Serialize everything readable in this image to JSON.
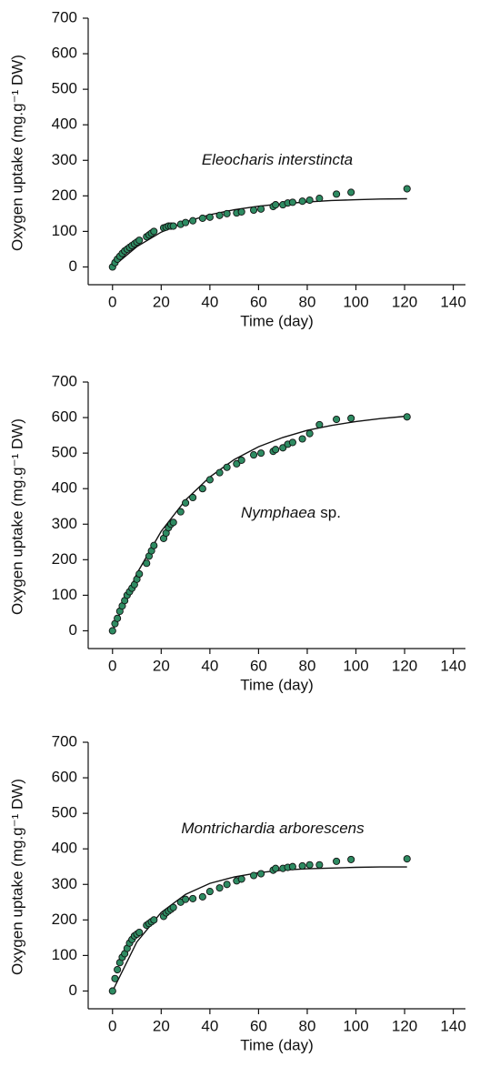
{
  "chart_data": [
    {
      "type": "scatter",
      "x_label": "Time (day)",
      "y_label": "Oxygen uptake (mg.g⁻¹ DW)",
      "annotation": [
        "Eleocharis interstincta"
      ],
      "xlim": [
        -10,
        145
      ],
      "ylim": [
        -50,
        700
      ],
      "xticks": [
        0,
        20,
        40,
        60,
        80,
        100,
        120,
        140
      ],
      "yticks": [
        0,
        100,
        200,
        300,
        400,
        500,
        600,
        700
      ],
      "points": {
        "color": "#2e8b62",
        "x": [
          0,
          1,
          2,
          3,
          4,
          5,
          6,
          7,
          8,
          9,
          10,
          11,
          14,
          15,
          16,
          17,
          21,
          22,
          23,
          24,
          25,
          28,
          30,
          33,
          37,
          40,
          44,
          47,
          51,
          53,
          58,
          61,
          66,
          67,
          70,
          72,
          74,
          78,
          81,
          85,
          92,
          98,
          121
        ],
        "values": [
          0,
          12,
          22,
          30,
          38,
          45,
          50,
          55,
          60,
          65,
          70,
          75,
          85,
          90,
          95,
          100,
          110,
          112,
          115,
          115,
          115,
          120,
          125,
          130,
          137,
          140,
          145,
          150,
          152,
          155,
          160,
          163,
          170,
          175,
          175,
          180,
          182,
          185,
          188,
          193,
          205,
          210,
          220
        ]
      },
      "fit": {
        "color": "#111111",
        "x": [
          0,
          10,
          20,
          30,
          40,
          50,
          60,
          70,
          80,
          90,
          100,
          110,
          121
        ],
        "values": [
          0,
          57,
          98,
          127,
          147,
          161,
          171,
          178,
          183,
          187,
          189,
          191,
          192
        ]
      }
    },
    {
      "type": "scatter",
      "x_label": "Time (day)",
      "y_label": "Oxygen uptake (mg.g⁻¹ DW)",
      "annotation": [
        "Nymphaea",
        "sp."
      ],
      "xlim": [
        -10,
        145
      ],
      "ylim": [
        -50,
        700
      ],
      "xticks": [
        0,
        20,
        40,
        60,
        80,
        100,
        120,
        140
      ],
      "yticks": [
        0,
        100,
        200,
        300,
        400,
        500,
        600,
        700
      ],
      "points": {
        "color": "#2e8b62",
        "x": [
          0,
          1,
          2,
          3,
          4,
          5,
          6,
          7,
          8,
          9,
          10,
          11,
          14,
          15,
          16,
          17,
          21,
          22,
          23,
          24,
          25,
          28,
          30,
          33,
          37,
          40,
          44,
          47,
          51,
          53,
          58,
          61,
          66,
          67,
          70,
          72,
          74,
          78,
          81,
          85,
          92,
          98,
          121
        ],
        "values": [
          0,
          20,
          35,
          55,
          70,
          85,
          100,
          110,
          120,
          130,
          145,
          160,
          190,
          210,
          225,
          240,
          260,
          275,
          290,
          300,
          305,
          335,
          360,
          375,
          400,
          425,
          445,
          460,
          470,
          480,
          495,
          500,
          505,
          510,
          515,
          525,
          530,
          540,
          555,
          580,
          595,
          598,
          602
        ]
      },
      "fit": {
        "color": "#111111",
        "x": [
          0,
          10,
          20,
          30,
          40,
          50,
          60,
          70,
          80,
          90,
          100,
          110,
          121
        ],
        "values": [
          0,
          161,
          280,
          368,
          433,
          482,
          518,
          544,
          564,
          578,
          589,
          597,
          604
        ]
      }
    },
    {
      "type": "scatter",
      "x_label": "Time (day)",
      "y_label": "Oxygen uptake (mg.g⁻¹ DW)",
      "annotation": [
        "Montrichardia arborescens"
      ],
      "xlim": [
        -10,
        145
      ],
      "ylim": [
        -50,
        700
      ],
      "xticks": [
        0,
        20,
        40,
        60,
        80,
        100,
        120,
        140
      ],
      "yticks": [
        0,
        100,
        200,
        300,
        400,
        500,
        600,
        700
      ],
      "points": {
        "color": "#2e8b62",
        "x": [
          0,
          1,
          2,
          3,
          4,
          5,
          6,
          7,
          8,
          9,
          10,
          11,
          14,
          15,
          16,
          17,
          21,
          22,
          23,
          24,
          25,
          28,
          30,
          33,
          37,
          40,
          44,
          47,
          51,
          53,
          58,
          61,
          66,
          67,
          70,
          72,
          74,
          78,
          81,
          85,
          92,
          98,
          121
        ],
        "values": [
          0,
          35,
          60,
          80,
          95,
          105,
          120,
          135,
          145,
          155,
          160,
          165,
          185,
          190,
          195,
          200,
          210,
          220,
          225,
          230,
          235,
          250,
          258,
          260,
          265,
          280,
          290,
          300,
          310,
          315,
          325,
          330,
          340,
          345,
          345,
          348,
          350,
          352,
          355,
          355,
          365,
          370,
          372
        ]
      },
      "fit": {
        "color": "#111111",
        "x": [
          0,
          10,
          20,
          30,
          40,
          50,
          60,
          70,
          80,
          90,
          100,
          110,
          121
        ],
        "values": [
          0,
          138,
          221,
          272,
          303,
          321,
          333,
          340,
          344,
          346,
          348,
          349,
          349
        ]
      }
    }
  ]
}
